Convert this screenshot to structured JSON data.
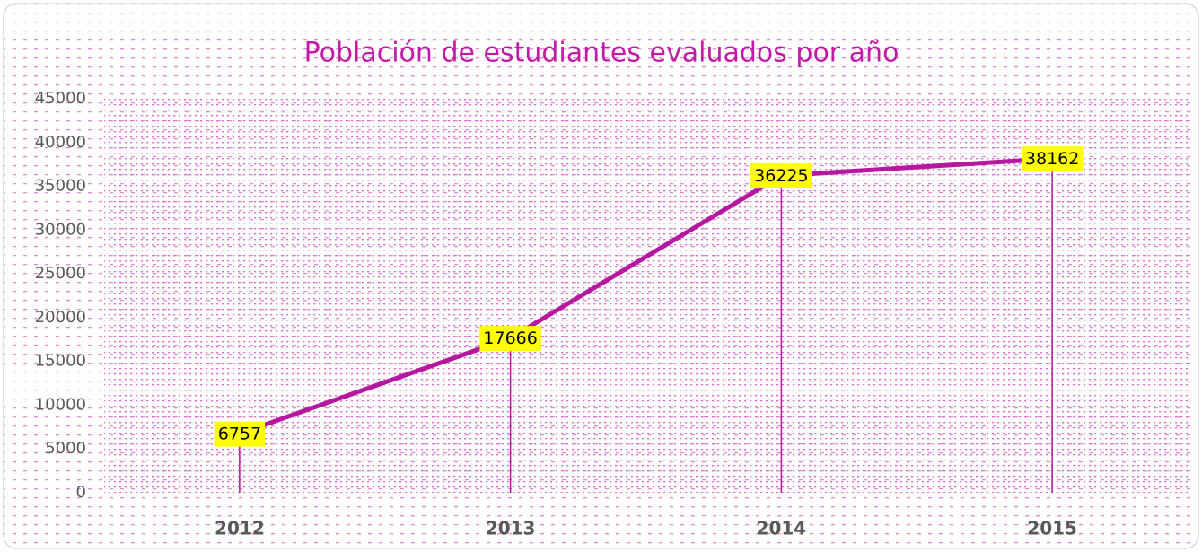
{
  "chart_data": {
    "type": "line",
    "title": "Población de estudiantes evaluados por año",
    "categories": [
      "2012",
      "2013",
      "2014",
      "2015"
    ],
    "series": [
      {
        "color": "#b5179e",
        "values": [
          6757,
          17666,
          36225,
          38162
        ]
      }
    ],
    "ylim": [
      0,
      45000
    ],
    "yticks": [
      0,
      5000,
      10000,
      15000,
      20000,
      25000,
      30000,
      35000,
      40000,
      45000
    ],
    "grid": false,
    "drop_lines": true,
    "label_color": "#ffff00"
  }
}
